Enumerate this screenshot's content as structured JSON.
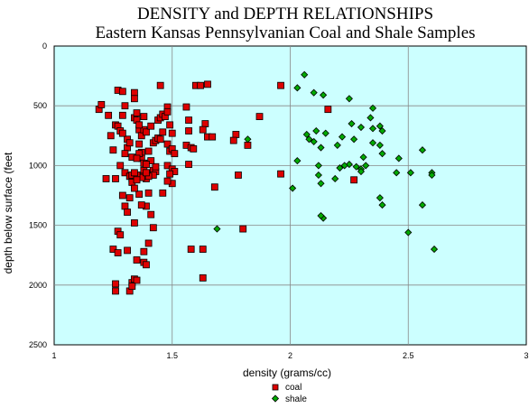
{
  "chart_data": {
    "type": "scatter",
    "title": "DENSITY and DEPTH RELATIONSHIPS",
    "subtitle": "Eastern Kansas Pennsylvanian Coal and Shale Samples",
    "xlabel": "density  (grams/cc)",
    "ylabel": "depth below surface (feet",
    "xlim": [
      1,
      3
    ],
    "ylim": [
      0,
      2500
    ],
    "y_inverted": true,
    "x_ticks": [
      "1",
      "1.5",
      "2",
      "2.5",
      "3"
    ],
    "y_ticks": [
      "0",
      "500",
      "1000",
      "1500",
      "2000",
      "2500"
    ],
    "grid": true,
    "plot_background": "#ccffff",
    "legend_position": "bottom-center",
    "series": [
      {
        "name": "coal",
        "marker": "square",
        "color": "#dd0000",
        "points": [
          [
            1.19,
            530
          ],
          [
            1.2,
            490
          ],
          [
            1.23,
            580
          ],
          [
            1.22,
            1110
          ],
          [
            1.24,
            750
          ],
          [
            1.26,
            1110
          ],
          [
            1.25,
            870
          ],
          [
            1.26,
            660
          ],
          [
            1.27,
            670
          ],
          [
            1.28,
            710
          ],
          [
            1.27,
            370
          ],
          [
            1.29,
            380
          ],
          [
            1.29,
            580
          ],
          [
            1.3,
            500
          ],
          [
            1.31,
            850
          ],
          [
            1.3,
            1060
          ],
          [
            1.32,
            1090
          ],
          [
            1.33,
            1110
          ],
          [
            1.29,
            1250
          ],
          [
            1.3,
            1340
          ],
          [
            1.31,
            1390
          ],
          [
            1.32,
            1270
          ],
          [
            1.33,
            1080
          ],
          [
            1.33,
            1140
          ],
          [
            1.34,
            390
          ],
          [
            1.34,
            440
          ],
          [
            1.34,
            600
          ],
          [
            1.35,
            620
          ],
          [
            1.36,
            700
          ],
          [
            1.36,
            820
          ],
          [
            1.37,
            890
          ],
          [
            1.37,
            940
          ],
          [
            1.38,
            980
          ],
          [
            1.38,
            1040
          ],
          [
            1.38,
            1090
          ],
          [
            1.39,
            1110
          ],
          [
            1.36,
            1240
          ],
          [
            1.34,
            1480
          ],
          [
            1.25,
            1700
          ],
          [
            1.27,
            1730
          ],
          [
            1.31,
            1710
          ],
          [
            1.27,
            1550
          ],
          [
            1.28,
            1580
          ],
          [
            1.26,
            1990
          ],
          [
            1.26,
            2050
          ],
          [
            1.32,
            2050
          ],
          [
            1.33,
            1980
          ],
          [
            1.34,
            1950
          ],
          [
            1.35,
            1960
          ],
          [
            1.33,
            2010
          ],
          [
            1.35,
            1790
          ],
          [
            1.38,
            1720
          ],
          [
            1.38,
            1810
          ],
          [
            1.39,
            1830
          ],
          [
            1.4,
            1650
          ],
          [
            1.39,
            1340
          ],
          [
            1.37,
            1330
          ],
          [
            1.41,
            1410
          ],
          [
            1.42,
            1520
          ],
          [
            1.4,
            1230
          ],
          [
            1.41,
            1060
          ],
          [
            1.42,
            1040
          ],
          [
            1.43,
            1050
          ],
          [
            1.42,
            1080
          ],
          [
            1.43,
            1010
          ],
          [
            1.41,
            960
          ],
          [
            1.4,
            880
          ],
          [
            1.42,
            810
          ],
          [
            1.43,
            790
          ],
          [
            1.44,
            770
          ],
          [
            1.45,
            780
          ],
          [
            1.46,
            720
          ],
          [
            1.44,
            620
          ],
          [
            1.45,
            600
          ],
          [
            1.46,
            570
          ],
          [
            1.47,
            590
          ],
          [
            1.48,
            510
          ],
          [
            1.48,
            550
          ],
          [
            1.49,
            660
          ],
          [
            1.5,
            730
          ],
          [
            1.48,
            820
          ],
          [
            1.49,
            880
          ],
          [
            1.5,
            860
          ],
          [
            1.51,
            900
          ],
          [
            1.48,
            1000
          ],
          [
            1.5,
            1030
          ],
          [
            1.51,
            1050
          ],
          [
            1.5,
            1150
          ],
          [
            1.46,
            1230
          ],
          [
            1.48,
            1130
          ],
          [
            1.49,
            1070
          ],
          [
            1.45,
            330
          ],
          [
            1.56,
            510
          ],
          [
            1.57,
            620
          ],
          [
            1.57,
            710
          ],
          [
            1.56,
            830
          ],
          [
            1.58,
            850
          ],
          [
            1.59,
            860
          ],
          [
            1.6,
            330
          ],
          [
            1.62,
            330
          ],
          [
            1.65,
            320
          ],
          [
            1.64,
            650
          ],
          [
            1.63,
            700
          ],
          [
            1.65,
            760
          ],
          [
            1.67,
            760
          ],
          [
            1.68,
            1180
          ],
          [
            1.57,
            990
          ],
          [
            1.58,
            1700
          ],
          [
            1.63,
            1700
          ],
          [
            1.63,
            1940
          ],
          [
            1.77,
            740
          ],
          [
            1.76,
            790
          ],
          [
            1.78,
            1080
          ],
          [
            1.8,
            1530
          ],
          [
            1.82,
            830
          ],
          [
            1.87,
            590
          ],
          [
            1.96,
            330
          ],
          [
            1.96,
            1070
          ],
          [
            2.16,
            530
          ],
          [
            2.27,
            1120
          ],
          [
            1.37,
            1100
          ],
          [
            1.4,
            1090
          ],
          [
            1.39,
            990
          ],
          [
            1.39,
            1060
          ],
          [
            1.35,
            1080
          ],
          [
            1.34,
            1060
          ],
          [
            1.35,
            1120
          ],
          [
            1.36,
            900
          ],
          [
            1.33,
            930
          ],
          [
            1.35,
            940
          ],
          [
            1.31,
            780
          ],
          [
            1.32,
            810
          ],
          [
            1.37,
            750
          ],
          [
            1.38,
            700
          ],
          [
            1.39,
            720
          ],
          [
            1.41,
            670
          ],
          [
            1.29,
            730
          ],
          [
            1.35,
            560
          ],
          [
            1.38,
            590
          ],
          [
            1.36,
            660
          ],
          [
            1.3,
            900
          ],
          [
            1.28,
            1000
          ],
          [
            1.34,
            1190
          ]
        ]
      },
      {
        "name": "shale",
        "marker": "diamond",
        "color": "#00aa00",
        "points": [
          [
            2.06,
            240
          ],
          [
            2.03,
            350
          ],
          [
            2.1,
            390
          ],
          [
            2.14,
            410
          ],
          [
            2.25,
            440
          ],
          [
            2.35,
            520
          ],
          [
            2.34,
            600
          ],
          [
            2.26,
            650
          ],
          [
            2.3,
            680
          ],
          [
            2.35,
            690
          ],
          [
            2.38,
            670
          ],
          [
            2.39,
            710
          ],
          [
            2.07,
            740
          ],
          [
            2.11,
            710
          ],
          [
            2.15,
            730
          ],
          [
            2.08,
            780
          ],
          [
            2.1,
            800
          ],
          [
            2.13,
            850
          ],
          [
            2.22,
            760
          ],
          [
            2.2,
            830
          ],
          [
            2.27,
            780
          ],
          [
            2.35,
            810
          ],
          [
            2.38,
            830
          ],
          [
            2.39,
            900
          ],
          [
            2.31,
            930
          ],
          [
            2.56,
            870
          ],
          [
            2.03,
            960
          ],
          [
            2.21,
            1020
          ],
          [
            2.25,
            990
          ],
          [
            2.28,
            1010
          ],
          [
            2.3,
            1030
          ],
          [
            2.32,
            1000
          ],
          [
            2.3,
            1050
          ],
          [
            2.12,
            1000
          ],
          [
            2.12,
            1080
          ],
          [
            2.13,
            1150
          ],
          [
            2.01,
            1190
          ],
          [
            2.19,
            1110
          ],
          [
            2.45,
            1060
          ],
          [
            2.46,
            940
          ],
          [
            2.51,
            1060
          ],
          [
            2.6,
            1060
          ],
          [
            2.6,
            1080
          ],
          [
            2.38,
            1270
          ],
          [
            2.39,
            1330
          ],
          [
            2.14,
            1440
          ],
          [
            2.13,
            1420
          ],
          [
            2.56,
            1330
          ],
          [
            2.5,
            1560
          ],
          [
            2.61,
            1700
          ],
          [
            1.82,
            780
          ],
          [
            1.69,
            1530
          ],
          [
            2.23,
            1000
          ]
        ]
      }
    ]
  }
}
